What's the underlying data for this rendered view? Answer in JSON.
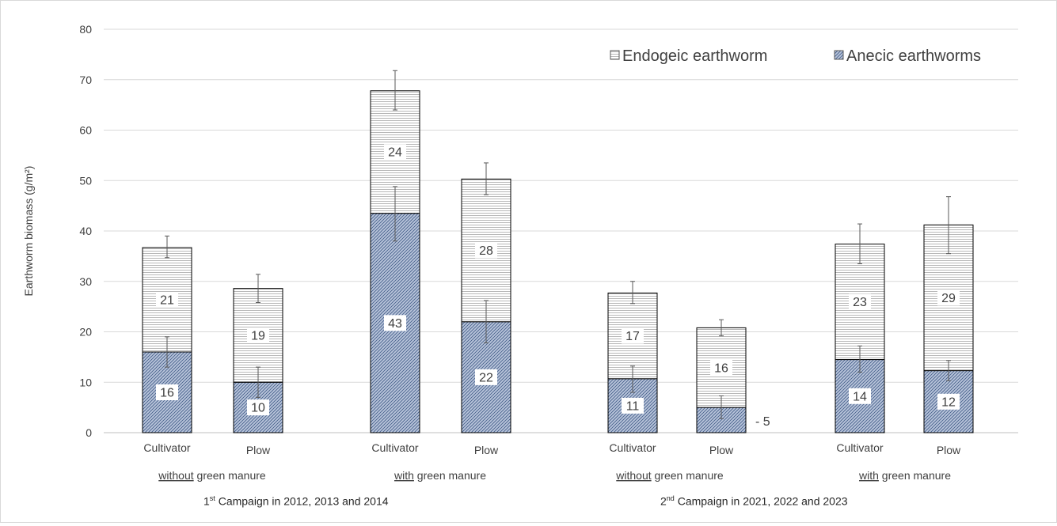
{
  "chart_data": {
    "type": "bar",
    "stacked": true,
    "ylabel": "Earthworm biomass (g/m²)",
    "ylim": [
      0,
      80
    ],
    "yticks": [
      0,
      10,
      20,
      30,
      40,
      50,
      60,
      70,
      80
    ],
    "grid": true,
    "legend_position": "top-right",
    "categories": [
      "Cultivator",
      "Plow",
      "Cultivator",
      "Plow",
      "Cultivator",
      "Plow",
      "Cultivator",
      "Plow"
    ],
    "groups": [
      {
        "underlined": "without",
        "rest": " green manure"
      },
      {
        "underlined": "with",
        "rest": " green manure"
      },
      {
        "underlined": "without",
        "rest": " green manure"
      },
      {
        "underlined": "with",
        "rest": " green manure"
      }
    ],
    "campaigns": [
      {
        "pre": "1",
        "sup": "st",
        "post": " Campaign  in 2012, 2013 and 2014"
      },
      {
        "pre": "2",
        "sup": "nd",
        "post": " Campaign  in 2021, 2022 and 2023"
      }
    ],
    "series": [
      {
        "name": "Anecic earthworms",
        "color": "#b8c4da",
        "values": [
          16,
          10,
          43.5,
          22,
          10.7,
          5,
          14.5,
          12.3
        ],
        "labels": [
          "16",
          "10",
          "43",
          "22",
          "11",
          "5",
          "14",
          "12"
        ],
        "error_low": [
          13,
          7,
          38,
          17.8,
          8,
          2.8,
          12,
          10.3
        ],
        "error_high": [
          19,
          13,
          48.8,
          26.2,
          13.2,
          7.3,
          17.2,
          14.3
        ]
      },
      {
        "name": "Endogeic earthworm",
        "color": "#efefef",
        "values": [
          20.7,
          18.6,
          24.3,
          28.3,
          17,
          15.8,
          22.9,
          28.9
        ],
        "labels": [
          "21",
          "19",
          "24",
          "28",
          "17",
          "16",
          "23",
          "29"
        ],
        "error_low": [
          34.7,
          25.8,
          64,
          47.2,
          25.6,
          19.2,
          33.5,
          35.5
        ],
        "error_high": [
          39,
          31.4,
          71.8,
          53.5,
          30,
          22.4,
          41.4,
          46.8
        ]
      }
    ],
    "legend": [
      "Endogeic earthworm",
      "Anecic earthworms"
    ]
  }
}
